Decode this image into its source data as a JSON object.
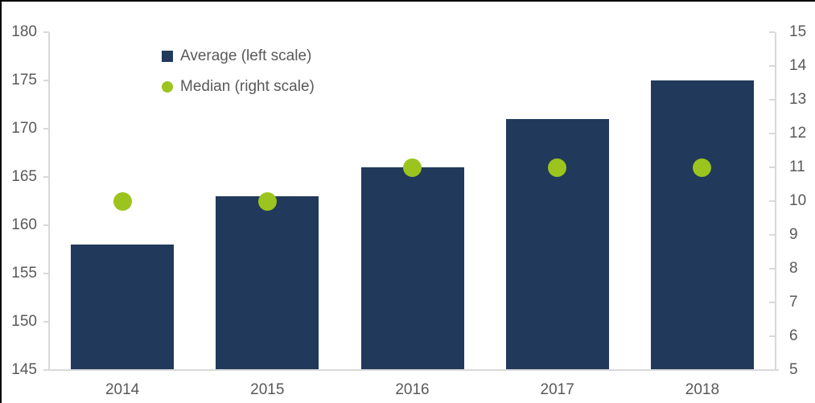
{
  "chart_data": {
    "type": "bar",
    "title": "",
    "categories": [
      "2014",
      "2015",
      "2016",
      "2017",
      "2018"
    ],
    "series": [
      {
        "name": "Average (left scale)",
        "type": "bar",
        "axis": "left",
        "values": [
          158,
          163,
          166,
          171,
          175
        ],
        "color": "#21395B"
      },
      {
        "name": "Median (right scale)",
        "type": "scatter",
        "axis": "right",
        "values": [
          10,
          10,
          11,
          11,
          11
        ],
        "color": "#9BC41E"
      }
    ],
    "left_axis": {
      "min": 145,
      "max": 180,
      "ticks": [
        145,
        150,
        155,
        160,
        165,
        170,
        175,
        180
      ]
    },
    "right_axis": {
      "min": 5,
      "max": 15,
      "ticks": [
        5,
        6,
        7,
        8,
        9,
        10,
        11,
        12,
        13,
        14,
        15
      ]
    },
    "legend": {
      "position": "top-left-inside",
      "items": [
        {
          "label": "Average (left scale)",
          "marker": "square",
          "color": "#21395B"
        },
        {
          "label": "Median (right scale)",
          "marker": "circle",
          "color": "#9BC41E"
        }
      ]
    },
    "grid": false,
    "colors": {
      "axis_line": "#D9D9D9",
      "tick_text": "#595959",
      "background": "#FFFFFF",
      "figure_border": "#000000"
    }
  }
}
